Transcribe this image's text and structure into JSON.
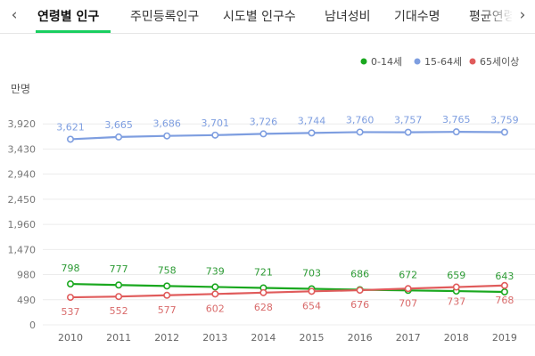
{
  "tabs": [
    {
      "label": "연령별 인구",
      "active": true
    },
    {
      "label": "주민등록인구",
      "active": false
    },
    {
      "label": "시도별 인구수",
      "active": false
    },
    {
      "label": "남녀성비",
      "active": false
    },
    {
      "label": "기대수명",
      "active": false
    },
    {
      "label": "평균연령",
      "active": false
    }
  ],
  "nav": {
    "prev": "‹",
    "next": "›"
  },
  "colors": {
    "accent": "#19ce60",
    "young": "#1aa81f",
    "working": "#7e9ee0",
    "elder": "#e05b5b"
  },
  "chart_data": {
    "type": "line",
    "ylabel": "만명",
    "x": [
      2010,
      2011,
      2012,
      2013,
      2014,
      2015,
      2016,
      2017,
      2018,
      2019
    ],
    "yticks": [
      "0",
      "490",
      "980",
      "1,470",
      "1,960",
      "2,450",
      "2,940",
      "3,430",
      "3,920"
    ],
    "ylim": [
      0,
      4410
    ],
    "grid": true,
    "legend_position": "top-right",
    "series": [
      {
        "name": "0-14세",
        "color": "#1aa81f",
        "label_color": "#2e9b36",
        "values": [
          798,
          777,
          758,
          739,
          721,
          703,
          686,
          672,
          659,
          643
        ],
        "labels": [
          "798",
          "777",
          "758",
          "739",
          "721",
          "703",
          "686",
          "672",
          "659",
          "643"
        ]
      },
      {
        "name": "15-64세",
        "color": "#7e9ee0",
        "label_color": "#7e9ee0",
        "values": [
          3621,
          3665,
          3686,
          3701,
          3726,
          3744,
          3760,
          3757,
          3765,
          3759
        ],
        "labels": [
          "3,621",
          "3,665",
          "3,686",
          "3,701",
          "3,726",
          "3,744",
          "3,760",
          "3,757",
          "3,765",
          "3,759"
        ]
      },
      {
        "name": "65세이상",
        "color": "#e05b5b",
        "label_color": "#d96b6b",
        "values": [
          537,
          552,
          577,
          602,
          628,
          654,
          676,
          707,
          737,
          768
        ],
        "labels": [
          "537",
          "552",
          "577",
          "602",
          "628",
          "654",
          "676",
          "707",
          "737",
          "768"
        ]
      }
    ]
  }
}
